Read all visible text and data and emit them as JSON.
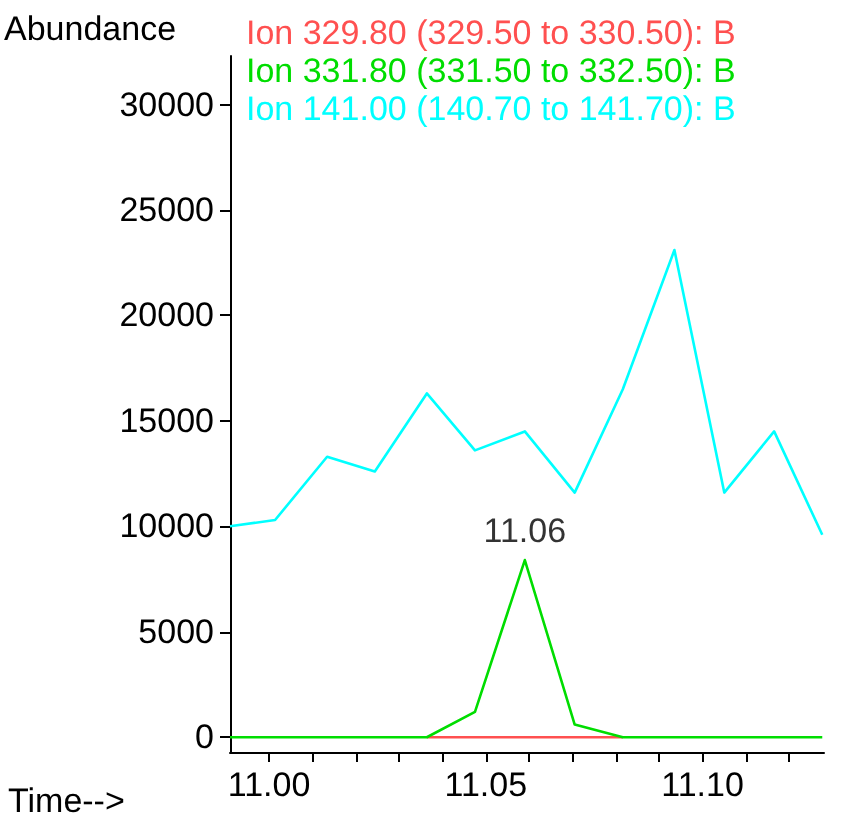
{
  "chart_data": {
    "type": "line",
    "xlabel": "Time-->",
    "ylabel": "Abundance",
    "x": [
      10.991,
      11.0014,
      11.0134,
      11.0244,
      11.0364,
      11.0475,
      11.059,
      11.0705,
      11.0816,
      11.0935,
      11.105,
      11.1165,
      11.1276
    ],
    "series": [
      {
        "name": "Ion 329.80 (329.50 to 330.50): B",
        "color": "#ff5050",
        "values": [
          null,
          null,
          null,
          null,
          0,
          0,
          0,
          0,
          0,
          null,
          null,
          null,
          null
        ]
      },
      {
        "name": "Ion 331.80 (331.50 to 332.50): B",
        "color": "#00dd00",
        "values": [
          0,
          0,
          0,
          0,
          0,
          1200,
          8400,
          600,
          0,
          0,
          0,
          0,
          0
        ]
      },
      {
        "name": "Ion 141.00 (140.70 to 141.70): B",
        "color": "#00ffff",
        "values": [
          10000,
          10300,
          13300,
          12600,
          16300,
          13600,
          14500,
          11600,
          16500,
          23100,
          11600,
          14500,
          9600
        ]
      }
    ],
    "annotations": [
      {
        "text": "11.06",
        "x": 11.059,
        "y": 8400
      }
    ],
    "xlim": [
      10.991,
      11.128
    ],
    "xticks": [
      {
        "value": 11,
        "label": "11.00"
      },
      {
        "value": 11.01,
        "label": null
      },
      {
        "value": 11.02,
        "label": null
      },
      {
        "value": 11.03,
        "label": null
      },
      {
        "value": 11.04,
        "label": null
      },
      {
        "value": 11.05,
        "label": "11.05"
      },
      {
        "value": 11.06,
        "label": null
      },
      {
        "value": 11.07,
        "label": null
      },
      {
        "value": 11.08,
        "label": null
      },
      {
        "value": 11.09,
        "label": null
      },
      {
        "value": 11.1,
        "label": "11.10"
      },
      {
        "value": 11.11,
        "label": null
      },
      {
        "value": 11.12,
        "label": null
      }
    ],
    "ylim": [
      -700,
      32300
    ],
    "yticks": [
      0,
      5000,
      10000,
      15000,
      20000,
      25000,
      30000
    ],
    "grid": false,
    "legend": "top left",
    "marker": "none",
    "line_style": "solid"
  }
}
